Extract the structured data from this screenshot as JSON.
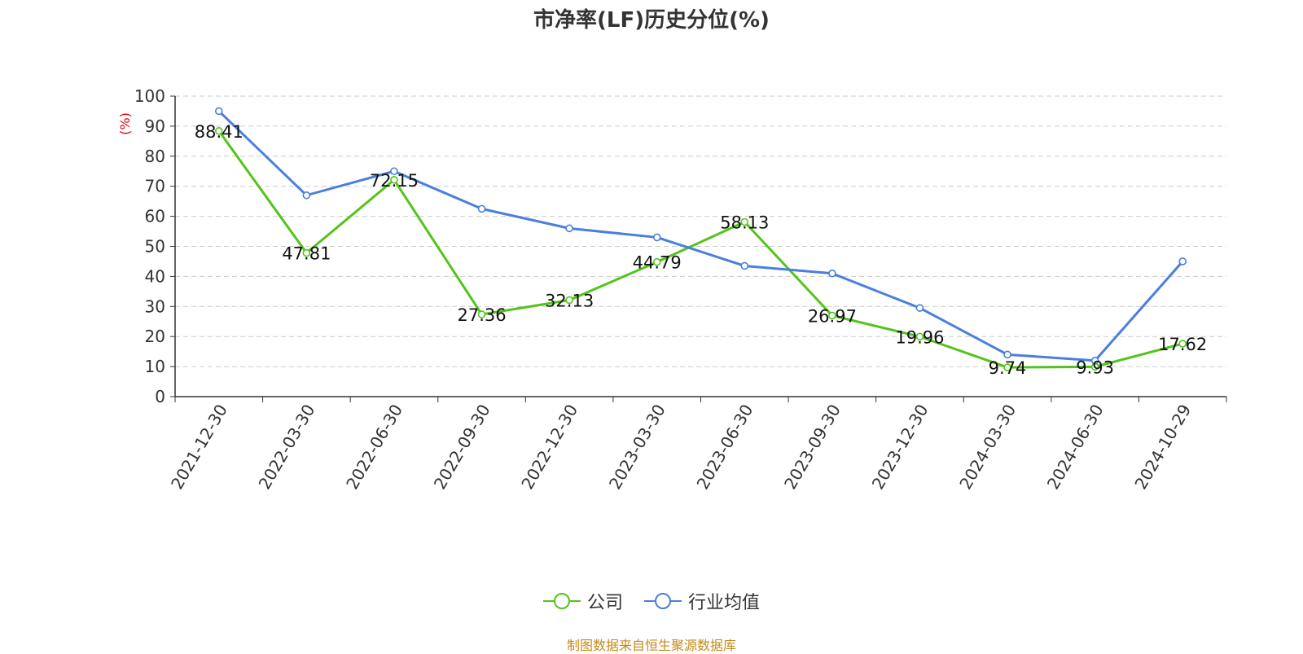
{
  "title": "市净率(LF)历史分位(%)",
  "source": "制图数据来自恒生聚源数据库",
  "colors": {
    "company": "#52c41a",
    "industry": "#4a7fdc",
    "unit": "#e0000f",
    "source": "#c48a1a"
  },
  "chart_data": {
    "type": "line",
    "title": "市净率(LF)历史分位(%)",
    "ylabel": "(%)",
    "xlabel": "",
    "ylim": [
      0,
      100
    ],
    "yticks": [
      0,
      10,
      20,
      30,
      40,
      50,
      60,
      70,
      80,
      90,
      100
    ],
    "grid": true,
    "legend_position": "bottom-center",
    "categories": [
      "2021-12-30",
      "2022-03-30",
      "2022-06-30",
      "2022-09-30",
      "2022-12-30",
      "2023-03-30",
      "2023-06-30",
      "2023-09-30",
      "2023-12-30",
      "2024-03-30",
      "2024-06-30",
      "2024-10-29"
    ],
    "series": [
      {
        "name": "公司",
        "values": [
          88.41,
          47.81,
          72.15,
          27.36,
          32.13,
          44.79,
          58.13,
          26.97,
          19.96,
          9.74,
          9.93,
          17.62
        ],
        "labels": [
          "88.41",
          "47.81",
          "72.15",
          "27.36",
          "32.13",
          "44.79",
          "58.13",
          "26.97",
          "19.96",
          "9.74",
          "9.93",
          "17.62"
        ]
      },
      {
        "name": "行业均值",
        "values": [
          95.0,
          67.0,
          75.0,
          62.5,
          56.0,
          53.0,
          43.5,
          41.0,
          29.5,
          14.0,
          12.0,
          45.0
        ]
      }
    ]
  }
}
